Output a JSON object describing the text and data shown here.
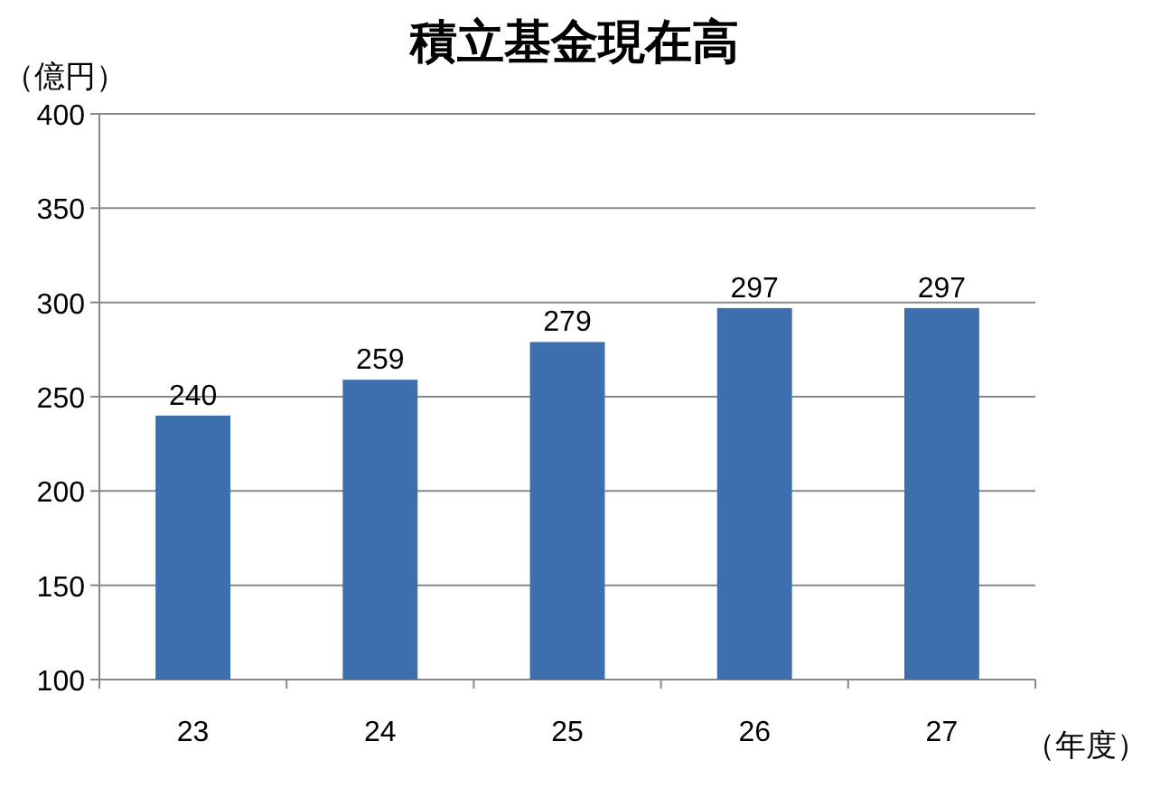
{
  "chart_data": {
    "type": "bar",
    "title": "積立基金現在高",
    "ylabel": "（億円）",
    "xlabel": "（年度）",
    "categories": [
      "23",
      "24",
      "25",
      "26",
      "27"
    ],
    "values": [
      240,
      259,
      279,
      297,
      297
    ],
    "color": "#3d6fae",
    "ylim": [
      100,
      400
    ],
    "yticks": [
      100,
      150,
      200,
      250,
      300,
      350,
      400
    ],
    "grid": "y",
    "data_labels": true
  }
}
